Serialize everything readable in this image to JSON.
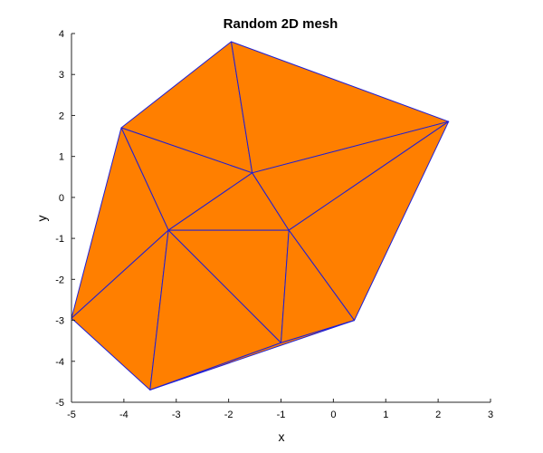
{
  "chart_data": {
    "type": "mesh",
    "title": "Random 2D mesh",
    "xlabel": "x",
    "ylabel": "y",
    "xlim": [
      -5,
      3
    ],
    "ylim": [
      -5,
      4
    ],
    "xticks": [
      -5,
      -4,
      -3,
      -2,
      -1,
      0,
      1,
      2,
      3
    ],
    "yticks": [
      -5,
      -4,
      -3,
      -2,
      -1,
      0,
      1,
      2,
      3,
      4
    ],
    "face_color": "#ff7f00",
    "edge_color": "#1f1fd6",
    "grid": false,
    "vertices": [
      [
        -1.95,
        3.8
      ],
      [
        -4.05,
        1.7
      ],
      [
        2.2,
        1.85
      ],
      [
        -1.55,
        0.6
      ],
      [
        -3.15,
        -0.8
      ],
      [
        -0.85,
        -0.8
      ],
      [
        -5.0,
        -2.95
      ],
      [
        0.4,
        -3.0
      ],
      [
        -1.0,
        -3.55
      ],
      [
        -3.5,
        -4.7
      ]
    ],
    "triangles": [
      [
        0,
        1,
        3
      ],
      [
        0,
        3,
        2
      ],
      [
        1,
        3,
        4
      ],
      [
        1,
        4,
        6
      ],
      [
        3,
        4,
        5
      ],
      [
        3,
        5,
        2
      ],
      [
        5,
        2,
        7
      ],
      [
        4,
        5,
        8
      ],
      [
        5,
        7,
        8
      ],
      [
        4,
        6,
        9
      ],
      [
        4,
        8,
        9
      ],
      [
        8,
        7,
        9
      ]
    ]
  }
}
